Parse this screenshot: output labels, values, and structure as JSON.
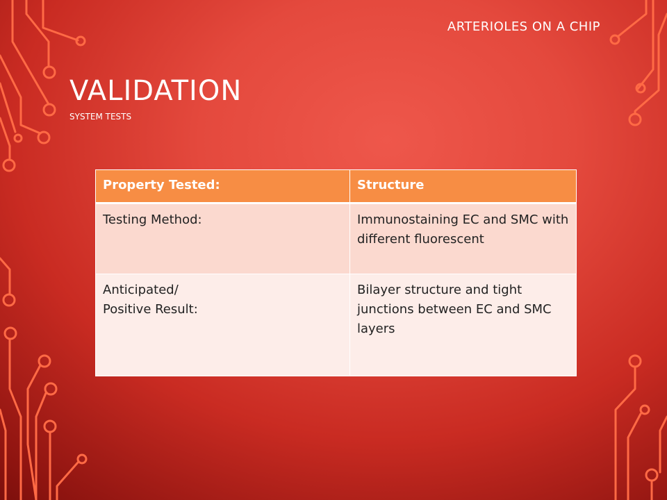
{
  "slide": {
    "header_text": "ARTERIOLES ON A CHIP",
    "title": "VALIDATION",
    "subtitle": "SYSTEM TESTS"
  },
  "table": {
    "header": [
      "Property Tested:",
      "Structure"
    ],
    "rows": [
      {
        "label": "Testing Method:",
        "value": "Immunostaining EC and SMC with different fluorescent"
      },
      {
        "label_lines": [
          "Anticipated/",
          "Positive Result:"
        ],
        "value": "Bilayer structure and tight junctions between EC and SMC layers"
      }
    ]
  },
  "colors": {
    "background": "#e4493d",
    "circuit_accent": "#ff6a45",
    "table_header": "#f78d44",
    "row_light_1": "#fbd9cf",
    "row_light_2": "#fdede9"
  }
}
